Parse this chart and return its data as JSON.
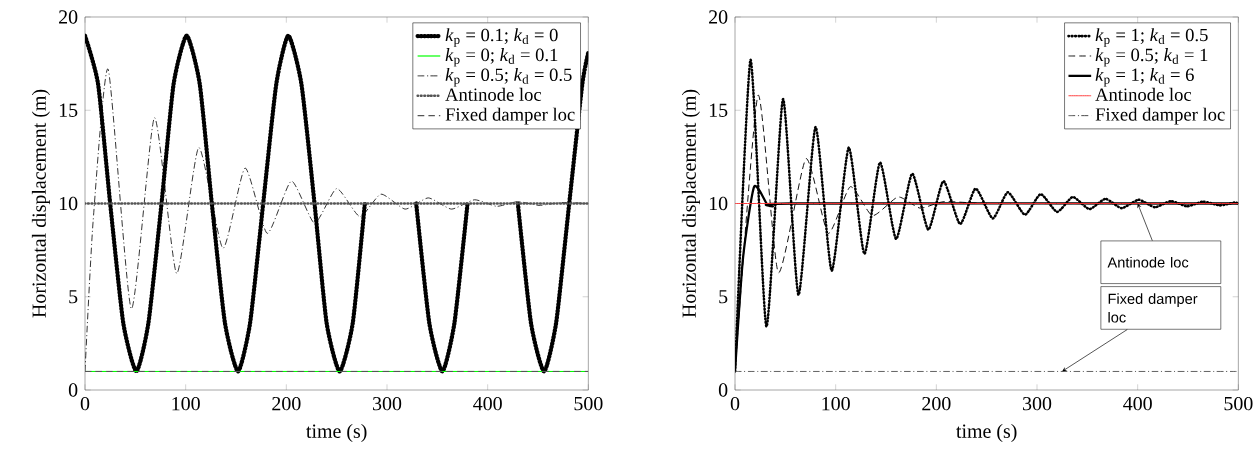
{
  "chart_data": [
    {
      "type": "line",
      "xlabel": "time (s)",
      "ylabel": "Horizontal displacement (m)",
      "xlim": [
        0,
        500
      ],
      "ylim": [
        0,
        20
      ],
      "xticks": [
        0,
        100,
        200,
        300,
        400,
        500
      ],
      "yticks": [
        0,
        5,
        10,
        15,
        20
      ],
      "legend": "top right",
      "series": [
        {
          "name": "*k*$_{p}$ = 0.1; *k*$_{d}$ = 0",
          "color": "#000000",
          "line_style": "dotted",
          "x": [
            0,
            13,
            25,
            38,
            51,
            63,
            76,
            88,
            101,
            114,
            126,
            139,
            152,
            164,
            177,
            190,
            202,
            215,
            228,
            240,
            253,
            266,
            278,
            291,
            304,
            316,
            329,
            342,
            355,
            367,
            380,
            393,
            405,
            418,
            430,
            443,
            456,
            468,
            481,
            494,
            500
          ],
          "values": [
            19,
            16.4,
            10,
            3.6,
            1,
            3.6,
            10,
            16.4,
            19,
            16.4,
            10,
            3.6,
            1,
            3.6,
            10,
            16.4,
            19,
            16.4,
            10,
            3.6,
            1,
            3.6,
            10,
            null,
            null,
            null,
            10,
            3.6,
            1,
            3.6,
            10,
            null,
            null,
            null,
            10,
            3.6,
            1,
            3.6,
            10,
            16.4,
            18.1
          ]
        },
        {
          "name": "*k*$_{p}$ = 0; *k*$_{d}$ = 0.1",
          "color": "#00ff00",
          "line_style": "solid",
          "x": [
            0,
            500
          ],
          "values": [
            1,
            1
          ]
        },
        {
          "name": "*k*$_{p}$ = 0.5; *k*$_{d}$ = 0.5",
          "color": "#000000",
          "line_style": "dashdot",
          "x": [
            0,
            8,
            23,
            46,
            69,
            91,
            113,
            137,
            159,
            181,
            205,
            228,
            250,
            273,
            294,
            318,
            341,
            364,
            387,
            409,
            430,
            451,
            473,
            500
          ],
          "values": [
            1,
            9,
            17.2,
            4.35,
            14.6,
            6.25,
            13,
            7.6,
            11.9,
            8.4,
            11.2,
            8.95,
            10.8,
            9.3,
            10.5,
            9.7,
            10.3,
            9.7,
            10.2,
            9.85,
            10.1,
            9.9,
            10.05,
            10
          ]
        },
        {
          "name": "Antinode loc",
          "color": "#555555",
          "line_style": "dotted",
          "x": [
            0,
            500
          ],
          "values": [
            10,
            10
          ]
        },
        {
          "name": "Fixed damper loc",
          "color": "#555555",
          "line_style": "dashed",
          "x": [
            0,
            500
          ],
          "values": [
            1,
            1
          ]
        }
      ]
    },
    {
      "type": "line",
      "xlabel": "time (s)",
      "ylabel": "Horizontal displacement (m)",
      "xlim": [
        0,
        500
      ],
      "ylim": [
        0,
        20
      ],
      "xticks": [
        0,
        100,
        200,
        300,
        400,
        500
      ],
      "yticks": [
        0,
        5,
        10,
        15,
        20
      ],
      "legend": "top right",
      "series": [
        {
          "name": "*k*$_{p}$ = 1; *k*$_{d}$ = 0.5",
          "color": "#000000",
          "line_style": "dotted",
          "x": [
            0,
            15.4,
            31.2,
            47.7,
            63,
            80,
            96,
            113,
            128.5,
            144,
            160,
            176,
            192,
            207,
            223.6,
            239,
            256,
            271,
            288,
            303.6,
            320,
            335.5,
            352,
            368,
            384,
            401,
            417,
            433,
            449,
            465,
            482,
            496,
            500
          ],
          "values": [
            1,
            17.7,
            3.4,
            15.6,
            5.1,
            14.1,
            6.4,
            13,
            7.3,
            12.2,
            8.1,
            11.6,
            8.6,
            11.2,
            8.9,
            10.8,
            9.2,
            10.6,
            9.4,
            10.5,
            9.55,
            10.35,
            9.7,
            10.25,
            9.75,
            10.2,
            9.8,
            10.13,
            9.85,
            10.1,
            9.9,
            10.05,
            10
          ]
        },
        {
          "name": "*k*$_{p}$ = 0.5; *k*$_{d}$ = 1",
          "color": "#000000",
          "line_style": "dashed",
          "x": [
            0,
            22.8,
            43,
            70.5,
            92.5,
            114.5,
            136.5,
            162,
            184,
            208,
            260,
            500
          ],
          "values": [
            1,
            15.8,
            6.3,
            12.4,
            8.4,
            10.9,
            9.35,
            10.35,
            9.75,
            10.1,
            10,
            10
          ]
        },
        {
          "name": "*k*$_{p}$ = 1; *k*$_{d}$ = 6",
          "color": "#000000",
          "line_style": "solid",
          "x": [
            0,
            8,
            19,
            32,
            37.5,
            56,
            500
          ],
          "values": [
            1,
            7.1,
            10.9,
            9.95,
            9.85,
            10,
            10
          ]
        },
        {
          "name": "Antinode loc",
          "color": "#ff3333",
          "line_style": "solid",
          "x": [
            0,
            500
          ],
          "values": [
            10,
            10
          ]
        },
        {
          "name": "Fixed damper loc",
          "color": "#404040",
          "line_style": "dashdot",
          "x": [
            0,
            500
          ],
          "values": [
            1,
            1
          ]
        }
      ],
      "annotations": [
        {
          "text": "Antinode loc",
          "x": 400,
          "y": 10
        },
        {
          "text": "Fixed damper loc",
          "x": 325,
          "y": 1
        }
      ]
    }
  ]
}
